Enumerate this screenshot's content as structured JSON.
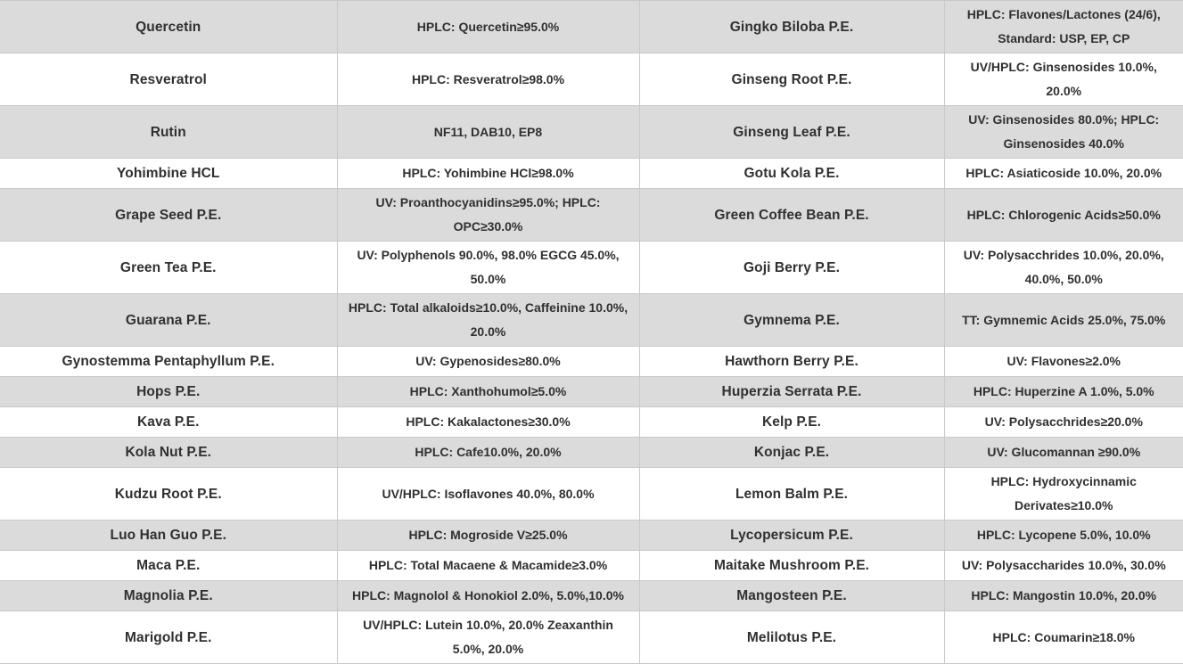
{
  "colors": {
    "striped_row_bg": "#dbdbdb",
    "plain_row_bg": "#ffffff",
    "border": "#c9c9c9",
    "text": "#303030"
  },
  "table": {
    "description": "Plant extract product specification table, 4 columns (product / specification / product / specification), alternating gray-white rows, no header row",
    "rows": [
      {
        "product_1": "Quercetin",
        "spec_1": "HPLC: Quercetin≥95.0%",
        "product_2": "Gingko Biloba P.E.",
        "spec_2": "HPLC: Flavones/Lactones (24/6), Standard: USP, EP, CP"
      },
      {
        "product_1": "Resveratrol",
        "spec_1": "HPLC: Resveratrol≥98.0%",
        "product_2": "Ginseng Root P.E.",
        "spec_2": "UV/HPLC: Ginsenosides 10.0%, 20.0%"
      },
      {
        "product_1": "Rutin",
        "spec_1": "NF11, DAB10, EP8",
        "product_2": "Ginseng Leaf P.E.",
        "spec_2": "UV: Ginsenosides 80.0%; HPLC: Ginsenosides 40.0%"
      },
      {
        "product_1": "Yohimbine HCL",
        "spec_1": "HPLC: Yohimbine HCl≥98.0%",
        "product_2": "Gotu Kola P.E.",
        "spec_2": "HPLC: Asiaticoside 10.0%, 20.0%"
      },
      {
        "product_1": "Grape Seed P.E.",
        "spec_1": "UV: Proanthocyanidins≥95.0%; HPLC: OPC≥30.0%",
        "product_2": "Green Coffee Bean P.E.",
        "spec_2": "HPLC: Chlorogenic Acids≥50.0%"
      },
      {
        "product_1": "Green Tea P.E.",
        "spec_1": "UV: Polyphenols 90.0%, 98.0% EGCG 45.0%, 50.0%",
        "product_2": "Goji Berry P.E.",
        "spec_2": "UV: Polysacchrides 10.0%, 20.0%, 40.0%, 50.0%"
      },
      {
        "product_1": "Guarana P.E.",
        "spec_1": "HPLC: Total alkaloids≥10.0%, Caffeinine 10.0%, 20.0%",
        "product_2": "Gymnema P.E.",
        "spec_2": "TT: Gymnemic Acids 25.0%, 75.0%"
      },
      {
        "product_1": "Gynostemma Pentaphyllum P.E.",
        "spec_1": "UV: Gypenosides≥80.0%",
        "product_2": "Hawthorn Berry P.E.",
        "spec_2": "UV: Flavones≥2.0%"
      },
      {
        "product_1": "Hops P.E.",
        "spec_1": "HPLC: Xanthohumol≥5.0%",
        "product_2": "Huperzia Serrata P.E.",
        "spec_2": "HPLC: Huperzine A 1.0%, 5.0%"
      },
      {
        "product_1": "Kava P.E.",
        "spec_1": "HPLC: Kakalactones≥30.0%",
        "product_2": "Kelp P.E.",
        "spec_2": "UV: Polysacchrides≥20.0%"
      },
      {
        "product_1": "Kola Nut P.E.",
        "spec_1": "HPLC: Cafe10.0%, 20.0%",
        "product_2": "Konjac P.E.",
        "spec_2": "UV: Glucomannan ≥90.0%"
      },
      {
        "product_1": "Kudzu Root P.E.",
        "spec_1": "UV/HPLC: Isoflavones 40.0%, 80.0%",
        "product_2": "Lemon Balm P.E.",
        "spec_2": "HPLC: Hydroxycinnamic Derivates≥10.0%"
      },
      {
        "product_1": "Luo Han Guo P.E.",
        "spec_1": "HPLC: Mogroside V≥25.0%",
        "product_2": "Lycopersicum P.E.",
        "spec_2": "HPLC: Lycopene 5.0%, 10.0%"
      },
      {
        "product_1": "Maca P.E.",
        "spec_1": "HPLC: Total Macaene & Macamide≥3.0%",
        "product_2": "Maitake Mushroom P.E.",
        "spec_2": "UV: Polysaccharides 10.0%, 30.0%"
      },
      {
        "product_1": "Magnolia P.E.",
        "spec_1": "HPLC: Magnolol & Honokiol 2.0%, 5.0%,10.0%",
        "product_2": "Mangosteen P.E.",
        "spec_2": "HPLC: Mangostin 10.0%, 20.0%"
      },
      {
        "product_1": "Marigold P.E.",
        "spec_1": "UV/HPLC: Lutein 10.0%, 20.0% Zeaxanthin 5.0%, 20.0%",
        "product_2": "Melilotus P.E.",
        "spec_2": "HPLC: Coumarin≥18.0%"
      }
    ]
  }
}
